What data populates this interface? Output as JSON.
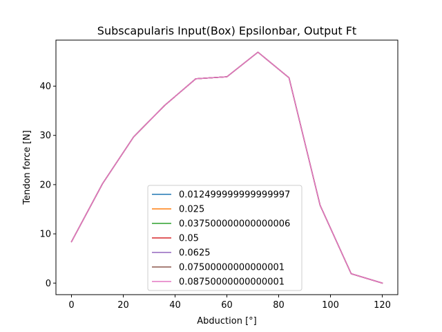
{
  "chart_data": {
    "type": "line",
    "title": "Subscapularis Input(Box) Epsilonbar, Output Ft",
    "xlabel": "Abduction [°]",
    "ylabel": "Tendon force [N]",
    "xlim": [
      -6,
      126
    ],
    "ylim": [
      -2.35,
      49.35
    ],
    "xticks": [
      0,
      20,
      40,
      60,
      80,
      100,
      120
    ],
    "yticks": [
      0,
      10,
      20,
      30,
      40
    ],
    "x": [
      0,
      12,
      24,
      36,
      48,
      60,
      72,
      84,
      96,
      108,
      120
    ],
    "series": [
      {
        "name": "0.012499999999999997",
        "color": "#1f77b4",
        "values": [
          8.4,
          20.2,
          29.7,
          36.1,
          41.5,
          41.9,
          46.9,
          41.7,
          15.8,
          1.9,
          0.0
        ]
      },
      {
        "name": "0.025",
        "color": "#ff7f0e",
        "values": [
          8.4,
          20.2,
          29.7,
          36.1,
          41.5,
          41.9,
          46.9,
          41.7,
          15.8,
          1.9,
          0.0
        ]
      },
      {
        "name": "0.037500000000000006",
        "color": "#2ca02c",
        "values": [
          8.4,
          20.2,
          29.7,
          36.1,
          41.5,
          41.9,
          46.9,
          41.7,
          15.8,
          1.9,
          0.0
        ]
      },
      {
        "name": "0.05",
        "color": "#d62728",
        "values": [
          8.4,
          20.2,
          29.7,
          36.1,
          41.5,
          41.9,
          46.9,
          41.7,
          15.8,
          1.9,
          0.0
        ]
      },
      {
        "name": "0.0625",
        "color": "#9467bd",
        "values": [
          8.4,
          20.2,
          29.7,
          36.1,
          41.5,
          41.9,
          46.9,
          41.7,
          15.8,
          1.9,
          0.0
        ]
      },
      {
        "name": "0.07500000000000001",
        "color": "#8c564b",
        "values": [
          8.4,
          20.2,
          29.7,
          36.1,
          41.5,
          41.9,
          46.9,
          41.7,
          15.8,
          1.9,
          0.0
        ]
      },
      {
        "name": "0.08750000000000001",
        "color": "#e377c2",
        "values": [
          8.4,
          20.2,
          29.7,
          36.1,
          41.5,
          41.9,
          46.9,
          41.7,
          15.8,
          1.9,
          0.0
        ]
      }
    ],
    "grid": false,
    "legend_position": "lower-center"
  }
}
